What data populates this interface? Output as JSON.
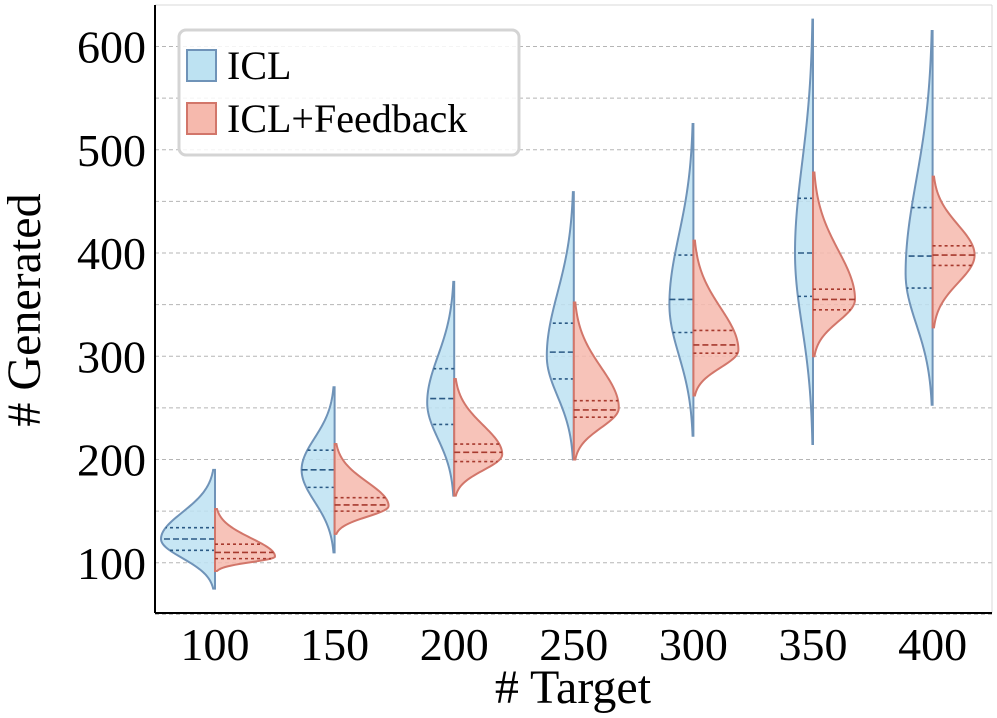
{
  "chart_data": {
    "type": "violin",
    "xlabel": "# Target",
    "ylabel": "# Generated",
    "x_categories": [
      100,
      150,
      200,
      250,
      300,
      350,
      400
    ],
    "ylim": [
      50,
      640
    ],
    "y_ticks": [
      100,
      200,
      300,
      400,
      500,
      600
    ],
    "y_gridlines_every": 50,
    "grid": "horizontal dashed",
    "legend": {
      "position": "top-left",
      "entries": [
        "ICL",
        "ICL+Feedback"
      ]
    },
    "colors": {
      "ICL_fill": "#bde2f2",
      "ICL_edge": "#6f93b8",
      "ICL_quartiles": "#2b5a85",
      "Feedback_fill": "#f6b9ad",
      "Feedback_edge": "#d2766a",
      "Feedback_quartiles": "#a73a2e"
    },
    "series": [
      {
        "name": "ICL",
        "side": "left",
        "violins": [
          {
            "x": 100,
            "min": 75,
            "max": 190,
            "q1": 112,
            "median": 123,
            "q3": 134,
            "mode": 123,
            "width": 0.9
          },
          {
            "x": 150,
            "min": 110,
            "max": 270,
            "q1": 173,
            "median": 190,
            "q3": 209,
            "mode": 190,
            "width": 0.55
          },
          {
            "x": 200,
            "min": 165,
            "max": 372,
            "q1": 234,
            "median": 259,
            "q3": 288,
            "mode": 255,
            "width": 0.45
          },
          {
            "x": 250,
            "min": 200,
            "max": 459,
            "q1": 278,
            "median": 304,
            "q3": 332,
            "mode": 300,
            "width": 0.45
          },
          {
            "x": 300,
            "min": 223,
            "max": 525,
            "q1": 323,
            "median": 355,
            "q3": 398,
            "mode": 350,
            "width": 0.4
          },
          {
            "x": 350,
            "min": 215,
            "max": 626,
            "q1": 358,
            "median": 400,
            "q3": 453,
            "mode": 400,
            "width": 0.3
          },
          {
            "x": 400,
            "min": 253,
            "max": 615,
            "q1": 366,
            "median": 397,
            "q3": 444,
            "mode": 380,
            "width": 0.45
          }
        ]
      },
      {
        "name": "ICL+Feedback",
        "side": "right",
        "violins": [
          {
            "x": 100,
            "min": 92,
            "max": 152,
            "q1": 104,
            "median": 110,
            "q3": 118,
            "mode": 106,
            "width": 1.0
          },
          {
            "x": 150,
            "min": 128,
            "max": 215,
            "q1": 150,
            "median": 156,
            "q3": 163,
            "mode": 155,
            "width": 0.9
          },
          {
            "x": 200,
            "min": 165,
            "max": 278,
            "q1": 198,
            "median": 207,
            "q3": 215,
            "mode": 205,
            "width": 0.8
          },
          {
            "x": 250,
            "min": 200,
            "max": 352,
            "q1": 241,
            "median": 248,
            "q3": 257,
            "mode": 250,
            "width": 0.75
          },
          {
            "x": 300,
            "min": 262,
            "max": 412,
            "q1": 303,
            "median": 311,
            "q3": 325,
            "mode": 306,
            "width": 0.75
          },
          {
            "x": 350,
            "min": 300,
            "max": 478,
            "q1": 345,
            "median": 355,
            "q3": 365,
            "mode": 355,
            "width": 0.7
          },
          {
            "x": 400,
            "min": 328,
            "max": 474,
            "q1": 388,
            "median": 398,
            "q3": 407,
            "mode": 398,
            "width": 0.7
          }
        ]
      }
    ]
  }
}
